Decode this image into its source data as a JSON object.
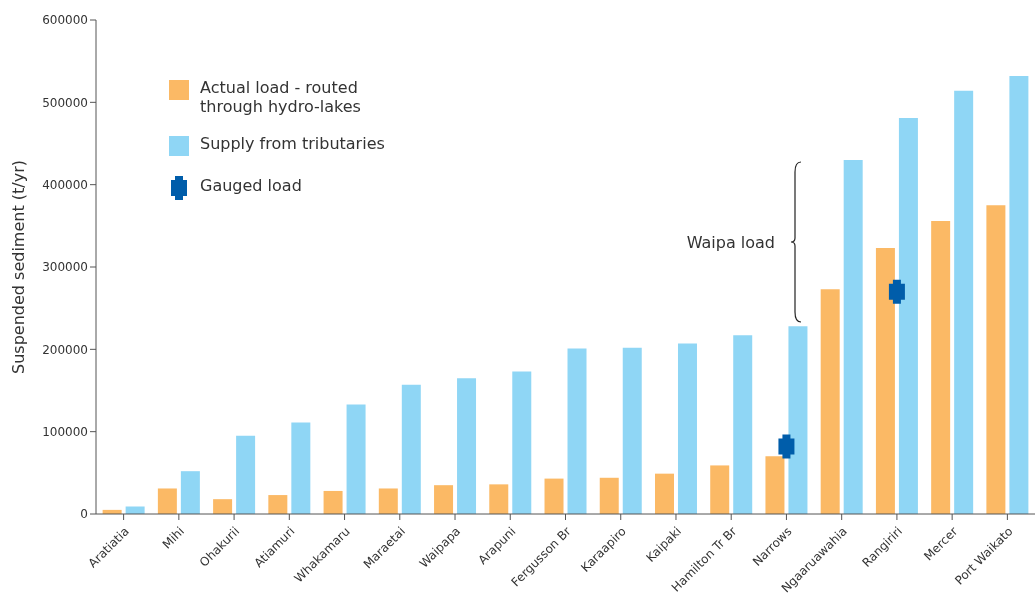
{
  "chart_data": {
    "type": "bar",
    "ylabel": "Suspended sediment (t/yr)",
    "categories": [
      "Aratiatia",
      "Mihi",
      "Ohakurii",
      "Atiamuri",
      "Whakamaru",
      "Maraetai",
      "Waipapa",
      "Arapuni",
      "Fergusson Br",
      "Karaapiro",
      "Kaipaki",
      "Hamilton Tr Br",
      "Narrows",
      "Ngaaruawahia",
      "Rangiriri",
      "Mercer",
      "Port Waikato"
    ],
    "series": [
      {
        "name": "Actual load - routed through hydro-lakes",
        "color": "#fbb965",
        "values": [
          5000,
          31000,
          18000,
          23000,
          28000,
          31000,
          35000,
          36000,
          43000,
          44000,
          49000,
          59000,
          70000,
          273000,
          323000,
          356000,
          375000
        ]
      },
      {
        "name": "Supply from tributaries",
        "color": "#8fd6f5",
        "values": [
          9000,
          52000,
          95000,
          111000,
          133000,
          157000,
          165000,
          173000,
          201000,
          202000,
          207000,
          217000,
          228000,
          430000,
          481000,
          514000,
          532000
        ]
      },
      {
        "name": "Gauged load",
        "type": "scatter",
        "marker": "cross",
        "color": "#005daa",
        "x": [
          "Narrows",
          "Rangiriri"
        ],
        "values": [
          82000,
          270000
        ]
      }
    ],
    "ylim": [
      0,
      600000
    ],
    "yticks": [
      0,
      100000,
      200000,
      300000,
      400000,
      500000,
      600000
    ],
    "grid": false,
    "legend": "top left",
    "annotations": [
      "Waipa load"
    ]
  }
}
